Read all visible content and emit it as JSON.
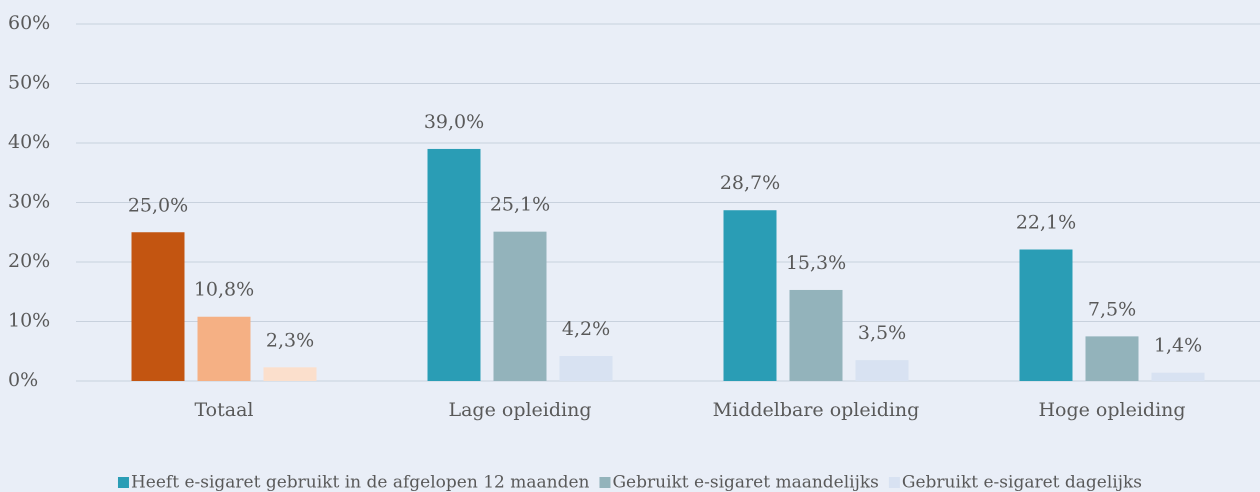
{
  "chart_data": {
    "type": "bar",
    "categories": [
      "Totaal",
      "Lage opleiding",
      "Middelbare opleiding",
      "Hoge opleiding"
    ],
    "series": [
      {
        "name": "Heeft e-sigaret gebruikt in de afgelopen 12 maanden",
        "color": "#2a9db5",
        "colors": [
          "#c35511",
          "#2a9db5",
          "#2a9db5",
          "#2a9db5"
        ],
        "values": [
          25.0,
          39.0,
          28.7,
          22.1
        ],
        "value_labels": [
          "25,0%",
          "39,0%",
          "28,7%",
          "22,1%"
        ]
      },
      {
        "name": "Gebruikt e-sigaret maandelijks",
        "color": "#93b3bb",
        "colors": [
          "#f5b084",
          "#93b3bb",
          "#93b3bb",
          "#93b3bb"
        ],
        "values": [
          10.8,
          25.1,
          15.3,
          7.5
        ],
        "value_labels": [
          "10,8%",
          "25,1%",
          "15,3%",
          "7,5%"
        ]
      },
      {
        "name": "Gebruikt e-sigaret dagelijks",
        "color": "#d8e2f2",
        "colors": [
          "#fbdfcc",
          "#d8e2f2",
          "#d8e2f2",
          "#d8e2f2"
        ],
        "values": [
          2.3,
          4.2,
          3.5,
          1.4
        ],
        "value_labels": [
          "2,3%",
          "4,2%",
          "3,5%",
          "1,4%"
        ]
      }
    ],
    "ylim": [
      0,
      60
    ],
    "yticks": [
      {
        "value": 0,
        "label": "0%"
      },
      {
        "value": 10,
        "label": "10%"
      },
      {
        "value": 20,
        "label": "20%"
      },
      {
        "value": 30,
        "label": "30%"
      },
      {
        "value": 40,
        "label": "40%"
      },
      {
        "value": 50,
        "label": "50%"
      },
      {
        "value": 60,
        "label": "60%"
      }
    ],
    "grid": true,
    "legend": "bottom"
  }
}
